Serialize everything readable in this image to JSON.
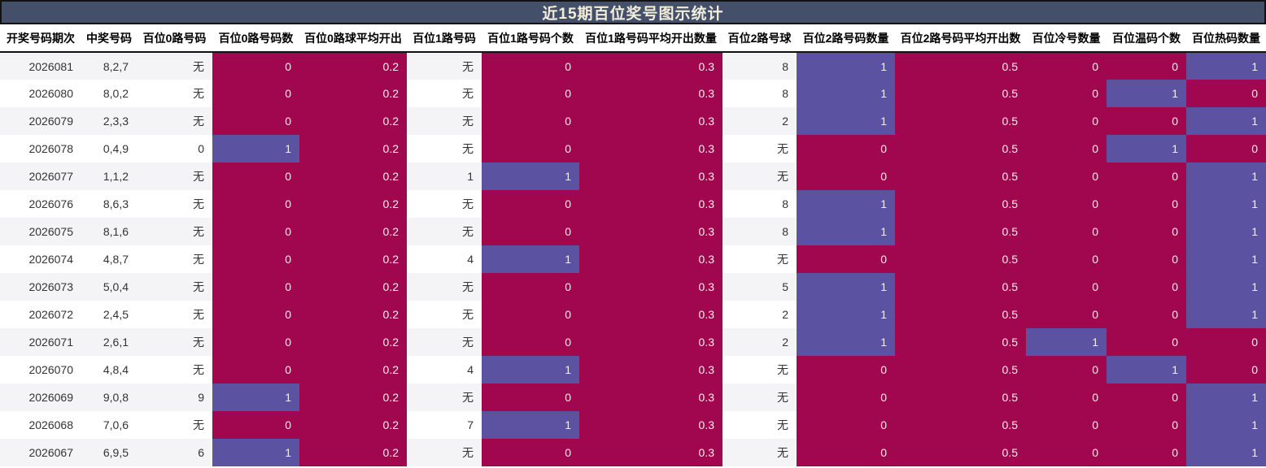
{
  "title": "近15期百位奖号图示统计",
  "colors": {
    "title_bar_bg": "#44506a",
    "title_text": "#f2edd9",
    "miss_cell": "#a1074e",
    "hit_cell": "#5b52a1",
    "stripe_odd": "#f4f4f6",
    "stripe_even": "#ffffff",
    "cell_text_light": "#f2eded",
    "cell_text_dark": "#333333"
  },
  "chart_data": {
    "type": "table",
    "title": "近15期百位奖号图示统计",
    "legend_position": "none",
    "color_coding": {
      "count_1": "#5b52a1",
      "count_0": "#a1074e"
    },
    "columns": [
      {
        "key": "period",
        "label": "开奖号码期次",
        "kind": "plain"
      },
      {
        "key": "win",
        "label": "中奖号码",
        "kind": "plain"
      },
      {
        "key": "r0_num",
        "label": "百位0路号码",
        "kind": "plain"
      },
      {
        "key": "r0_cnt",
        "label": "百位0路号码数",
        "kind": "count"
      },
      {
        "key": "r0_avg",
        "label": "百位0路球平均开出",
        "kind": "avg"
      },
      {
        "key": "r1_num",
        "label": "百位1路号码",
        "kind": "plain"
      },
      {
        "key": "r1_cnt",
        "label": "百位1路号码个数",
        "kind": "count"
      },
      {
        "key": "r1_avg",
        "label": "百位1路号码平均开出数量",
        "kind": "avg"
      },
      {
        "key": "r2_num",
        "label": "百位2路号球",
        "kind": "plain"
      },
      {
        "key": "r2_cnt",
        "label": "百位2路号码数量",
        "kind": "count"
      },
      {
        "key": "r2_avg",
        "label": "百位2路号码平均开出数",
        "kind": "avg"
      },
      {
        "key": "cold",
        "label": "百位冷号数量",
        "kind": "count"
      },
      {
        "key": "warm",
        "label": "百位温码个数",
        "kind": "count"
      },
      {
        "key": "hot",
        "label": "百位热码数量",
        "kind": "count"
      }
    ],
    "rows": [
      [
        "2026081",
        "8,2,7",
        "无",
        "0",
        "0.2",
        "无",
        "0",
        "0.3",
        "8",
        "1",
        "0.5",
        "0",
        "0",
        "1"
      ],
      [
        "2026080",
        "8,0,2",
        "无",
        "0",
        "0.2",
        "无",
        "0",
        "0.3",
        "8",
        "1",
        "0.5",
        "0",
        "1",
        "0"
      ],
      [
        "2026079",
        "2,3,3",
        "无",
        "0",
        "0.2",
        "无",
        "0",
        "0.3",
        "2",
        "1",
        "0.5",
        "0",
        "0",
        "1"
      ],
      [
        "2026078",
        "0,4,9",
        "0",
        "1",
        "0.2",
        "无",
        "0",
        "0.3",
        "无",
        "0",
        "0.5",
        "0",
        "1",
        "0"
      ],
      [
        "2026077",
        "1,1,2",
        "无",
        "0",
        "0.2",
        "1",
        "1",
        "0.3",
        "无",
        "0",
        "0.5",
        "0",
        "0",
        "1"
      ],
      [
        "2026076",
        "8,6,3",
        "无",
        "0",
        "0.2",
        "无",
        "0",
        "0.3",
        "8",
        "1",
        "0.5",
        "0",
        "0",
        "1"
      ],
      [
        "2026075",
        "8,1,6",
        "无",
        "0",
        "0.2",
        "无",
        "0",
        "0.3",
        "8",
        "1",
        "0.5",
        "0",
        "0",
        "1"
      ],
      [
        "2026074",
        "4,8,7",
        "无",
        "0",
        "0.2",
        "4",
        "1",
        "0.3",
        "无",
        "0",
        "0.5",
        "0",
        "0",
        "1"
      ],
      [
        "2026073",
        "5,0,4",
        "无",
        "0",
        "0.2",
        "无",
        "0",
        "0.3",
        "5",
        "1",
        "0.5",
        "0",
        "0",
        "1"
      ],
      [
        "2026072",
        "2,4,5",
        "无",
        "0",
        "0.2",
        "无",
        "0",
        "0.3",
        "2",
        "1",
        "0.5",
        "0",
        "0",
        "1"
      ],
      [
        "2026071",
        "2,6,1",
        "无",
        "0",
        "0.2",
        "无",
        "0",
        "0.3",
        "2",
        "1",
        "0.5",
        "1",
        "0",
        "0"
      ],
      [
        "2026070",
        "4,8,4",
        "无",
        "0",
        "0.2",
        "4",
        "1",
        "0.3",
        "无",
        "0",
        "0.5",
        "0",
        "1",
        "0"
      ],
      [
        "2026069",
        "9,0,8",
        "9",
        "1",
        "0.2",
        "无",
        "0",
        "0.3",
        "无",
        "0",
        "0.5",
        "0",
        "0",
        "1"
      ],
      [
        "2026068",
        "7,0,6",
        "无",
        "0",
        "0.2",
        "7",
        "1",
        "0.3",
        "无",
        "0",
        "0.5",
        "0",
        "0",
        "1"
      ],
      [
        "2026067",
        "6,9,5",
        "6",
        "1",
        "0.2",
        "无",
        "0",
        "0.3",
        "无",
        "0",
        "0.5",
        "0",
        "0",
        "1"
      ]
    ]
  }
}
